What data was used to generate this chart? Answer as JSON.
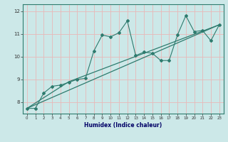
{
  "xlabel": "Humidex (Indice chaleur)",
  "bg_color": "#cce8e8",
  "grid_color": "#e8b8b8",
  "line_color": "#2e7b6e",
  "xlim": [
    -0.5,
    23.5
  ],
  "ylim": [
    7.5,
    12.3
  ],
  "xticks": [
    0,
    1,
    2,
    3,
    4,
    5,
    6,
    7,
    8,
    9,
    10,
    11,
    12,
    13,
    14,
    15,
    16,
    17,
    18,
    19,
    20,
    21,
    22,
    23
  ],
  "yticks": [
    8,
    9,
    10,
    11,
    12
  ],
  "series1_x": [
    0,
    1,
    2,
    3,
    4,
    5,
    6,
    7,
    8,
    9,
    10,
    11,
    12,
    13,
    14,
    15,
    16,
    17,
    18,
    19,
    20,
    21,
    22,
    23
  ],
  "series1_y": [
    7.73,
    7.73,
    8.4,
    8.7,
    8.75,
    8.87,
    9.0,
    9.05,
    10.25,
    10.95,
    10.87,
    11.05,
    11.57,
    10.05,
    10.2,
    10.15,
    9.83,
    9.83,
    10.95,
    11.8,
    11.1,
    11.15,
    10.7,
    11.4
  ],
  "trend1_x": [
    0,
    23
  ],
  "trend1_y": [
    7.73,
    11.4
  ],
  "trend2_x": [
    0,
    5,
    23
  ],
  "trend2_y": [
    7.73,
    8.9,
    11.4
  ]
}
